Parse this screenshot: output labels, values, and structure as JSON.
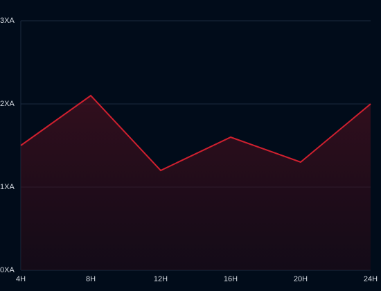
{
  "chart_data": {
    "type": "area",
    "categories": [
      "4H",
      "8H",
      "12H",
      "16H",
      "20H",
      "24H"
    ],
    "values": [
      1.5,
      2.1,
      1.2,
      1.6,
      1.3,
      2.0
    ],
    "color": "#d0202f",
    "ylim": [
      0,
      3
    ],
    "yticks": [
      {
        "value": 0,
        "label": "0XA"
      },
      {
        "value": 1,
        "label": "1XA"
      },
      {
        "value": 2,
        "label": "2XA"
      },
      {
        "value": 3,
        "label": "3XA"
      }
    ],
    "grid": true
  }
}
